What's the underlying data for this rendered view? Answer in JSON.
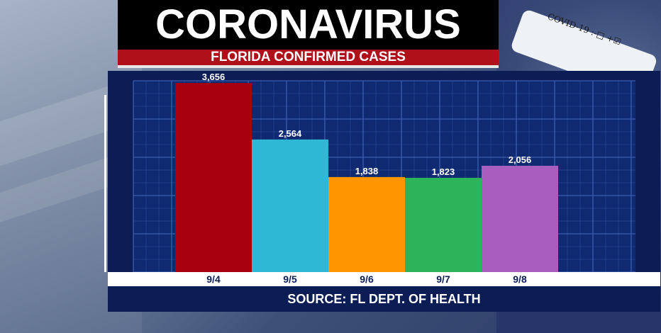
{
  "header": {
    "title": "CORONAVIRUS",
    "subtitle": "FLORIDA CONFIRMED CASES"
  },
  "background": {
    "tube_label": "COVID-19 :-□ +☑"
  },
  "footer": {
    "source": "SOURCE: FL DEPT. OF HEALTH"
  },
  "colors": {
    "panel": "#0c1d55",
    "grid": "#2b4a9a",
    "header_red": "#b0101a"
  },
  "chart_data": {
    "type": "bar",
    "categories": [
      "9/4",
      "9/5",
      "9/6",
      "9/7",
      "9/8"
    ],
    "values": [
      3656,
      2564,
      1838,
      1823,
      2056
    ],
    "value_labels": [
      "3,656",
      "2,564",
      "1,838",
      "1,823",
      "2,056"
    ],
    "bar_colors": [
      "#a8000f",
      "#2fb8d6",
      "#ff9500",
      "#2db35a",
      "#a85dbf"
    ],
    "ylim": [
      0,
      3700
    ],
    "grid": true
  }
}
